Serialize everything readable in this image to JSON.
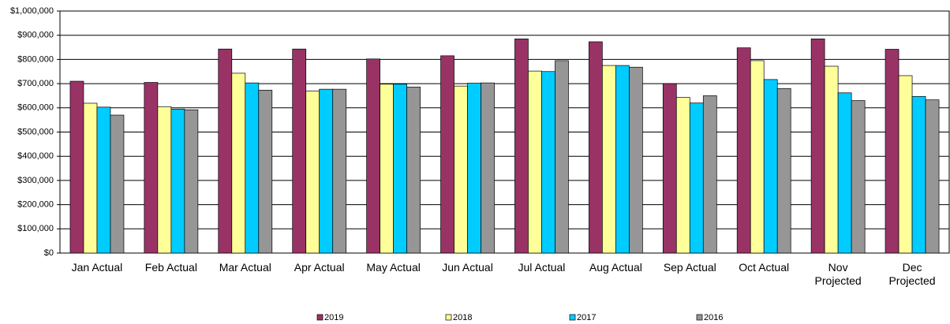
{
  "chart_data": {
    "type": "bar",
    "categories": [
      "Jan Actual",
      "Feb Actual",
      "Mar Actual",
      "Apr Actual",
      "May Actual",
      "Jun Actual",
      "Jul Actual",
      "Aug Actual",
      "Sep Actual",
      "Oct Actual",
      "Nov Projected",
      "Dec Projected"
    ],
    "series": [
      {
        "name": "2019",
        "color": "#993366",
        "values": [
          710000,
          705000,
          843000,
          843000,
          802000,
          815000,
          885000,
          873000,
          700000,
          848000,
          885000,
          842000
        ]
      },
      {
        "name": "2018",
        "color": "#ffff99",
        "values": [
          619000,
          605000,
          743000,
          670000,
          698000,
          690000,
          752000,
          775000,
          643000,
          795000,
          772000,
          733000
        ]
      },
      {
        "name": "2017",
        "color": "#00ccff",
        "values": [
          603000,
          595000,
          703000,
          677000,
          698000,
          702000,
          750000,
          775000,
          620000,
          717000,
          662000,
          647000
        ]
      },
      {
        "name": "2016",
        "color": "#969696",
        "values": [
          570000,
          592000,
          673000,
          677000,
          686000,
          703000,
          795000,
          768000,
          650000,
          680000,
          630000,
          633000
        ]
      }
    ],
    "ylim": [
      0,
      1000000
    ],
    "yticks": [
      {
        "value": 0,
        "label": "$0"
      },
      {
        "value": 100000,
        "label": "$100,000"
      },
      {
        "value": 200000,
        "label": "$200,000"
      },
      {
        "value": 300000,
        "label": "$300,000"
      },
      {
        "value": 400000,
        "label": "$400,000"
      },
      {
        "value": 500000,
        "label": "$500,000"
      },
      {
        "value": 600000,
        "label": "$600,000"
      },
      {
        "value": 700000,
        "label": "$700,000"
      },
      {
        "value": 800000,
        "label": "$800,000"
      },
      {
        "value": 900000,
        "label": "$900,000"
      },
      {
        "value": 1000000,
        "label": "$1,000,000"
      }
    ],
    "grid": true,
    "legend": "bottom"
  }
}
